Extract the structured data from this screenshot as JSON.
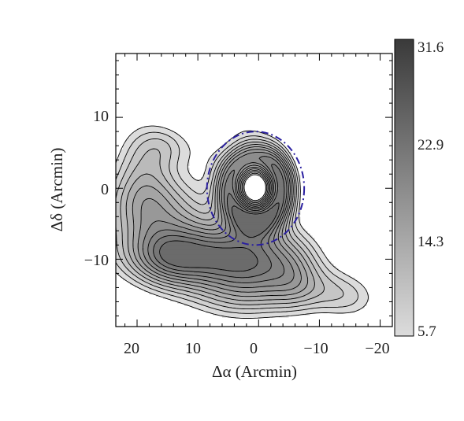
{
  "chart_data": {
    "type": "contour",
    "xlabel": "Δα (Arcmin)",
    "ylabel": "Δδ (Arcmin)",
    "x_ticks": [
      20,
      10,
      0,
      -10,
      -20
    ],
    "x_tick_labels": [
      "20",
      "10",
      "0",
      "−10",
      "−20"
    ],
    "y_ticks": [
      10,
      0,
      -10
    ],
    "y_tick_labels": [
      "10",
      "0",
      "−10"
    ],
    "xlim": [
      23.5,
      -22
    ],
    "ylim": [
      -19.5,
      19
    ],
    "colorbar": {
      "min": 5.7,
      "max": 31.6,
      "tick_labels": [
        "31.6",
        "22.9",
        "14.3",
        "5.7"
      ],
      "tick_values": [
        31.6,
        22.9,
        14.3,
        5.7
      ],
      "colors": [
        "#dcdcdc",
        "#3a3a3a"
      ]
    },
    "contour_levels": [
      5.7,
      7.5,
      9.3,
      11.1,
      12.9,
      14.7,
      16.5,
      18.3,
      20.1,
      21.9,
      23.7
    ],
    "circle": {
      "center": [
        0.5,
        0
      ],
      "radius": 8,
      "color": "#2a1fa0",
      "style": "dash-dot"
    }
  }
}
